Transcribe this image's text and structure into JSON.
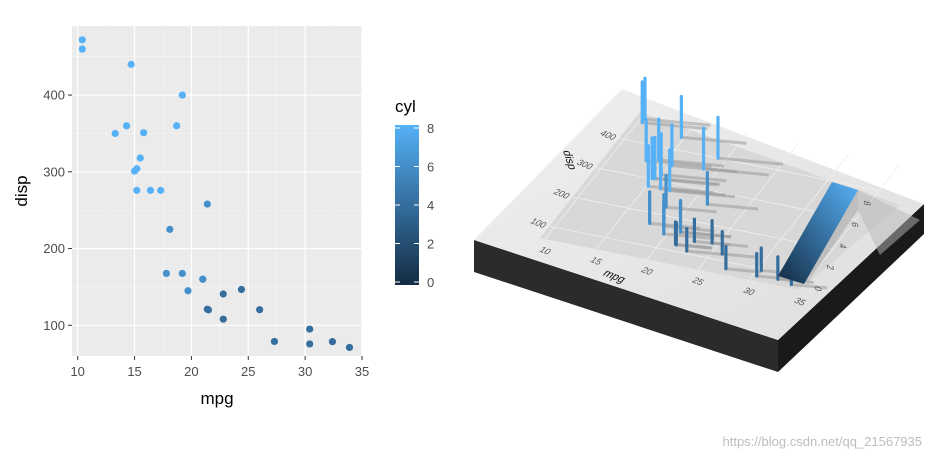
{
  "chart_data": [
    {
      "type": "scatter",
      "title": "",
      "xlabel": "mpg",
      "ylabel": "disp",
      "xlim": [
        9.5,
        35
      ],
      "ylim": [
        60,
        490
      ],
      "x_ticks": [
        10,
        15,
        20,
        25,
        30,
        35
      ],
      "y_ticks": [
        100,
        200,
        300,
        400
      ],
      "color_variable": "cyl",
      "points": [
        {
          "x": 10.4,
          "y": 472,
          "c": 8
        },
        {
          "x": 10.4,
          "y": 460,
          "c": 8
        },
        {
          "x": 14.7,
          "y": 440,
          "c": 8
        },
        {
          "x": 19.2,
          "y": 400,
          "c": 8
        },
        {
          "x": 18.7,
          "y": 360,
          "c": 8
        },
        {
          "x": 14.3,
          "y": 360,
          "c": 8
        },
        {
          "x": 13.3,
          "y": 350,
          "c": 8
        },
        {
          "x": 15.8,
          "y": 351,
          "c": 8
        },
        {
          "x": 15.5,
          "y": 318,
          "c": 8
        },
        {
          "x": 15.2,
          "y": 304,
          "c": 8
        },
        {
          "x": 15.0,
          "y": 301,
          "c": 8
        },
        {
          "x": 16.4,
          "y": 275.8,
          "c": 8
        },
        {
          "x": 17.3,
          "y": 275.8,
          "c": 8
        },
        {
          "x": 15.2,
          "y": 275.8,
          "c": 8
        },
        {
          "x": 21.4,
          "y": 258,
          "c": 6
        },
        {
          "x": 18.1,
          "y": 225,
          "c": 6
        },
        {
          "x": 17.8,
          "y": 167.6,
          "c": 6
        },
        {
          "x": 19.2,
          "y": 167.6,
          "c": 6
        },
        {
          "x": 21.0,
          "y": 160,
          "c": 6
        },
        {
          "x": 21.0,
          "y": 160,
          "c": 6
        },
        {
          "x": 19.7,
          "y": 145,
          "c": 6
        },
        {
          "x": 24.4,
          "y": 146.7,
          "c": 4
        },
        {
          "x": 22.8,
          "y": 140.8,
          "c": 4
        },
        {
          "x": 21.4,
          "y": 121,
          "c": 4
        },
        {
          "x": 21.5,
          "y": 120.1,
          "c": 4
        },
        {
          "x": 26.0,
          "y": 120.3,
          "c": 4
        },
        {
          "x": 22.8,
          "y": 108,
          "c": 4
        },
        {
          "x": 30.4,
          "y": 95.1,
          "c": 4
        },
        {
          "x": 27.3,
          "y": 79,
          "c": 4
        },
        {
          "x": 32.4,
          "y": 78.7,
          "c": 4
        },
        {
          "x": 30.4,
          "y": 75.7,
          "c": 4
        },
        {
          "x": 33.9,
          "y": 71.1,
          "c": 4
        }
      ]
    }
  ],
  "legend": {
    "title": "cyl",
    "ticks": [
      "0",
      "2",
      "4",
      "6",
      "8"
    ],
    "range": [
      0,
      8
    ],
    "color_low": "#132b43",
    "color_high": "#56b1f7"
  },
  "panel_3d": {
    "xlabel": "mpg",
    "ylabel": "disp",
    "x_ticks": [
      "10",
      "15",
      "20",
      "25",
      "30",
      "35"
    ],
    "y_ticks": [
      "100",
      "200",
      "300",
      "400"
    ],
    "legend_ticks": [
      "0",
      "2",
      "4",
      "6",
      "8"
    ]
  },
  "watermark": "https://blog.csdn.net/qq_21567935",
  "colors": {
    "panel_bg": "#ebebeb",
    "grid_major": "#ffffff",
    "grid_minor": "#f5f5f5",
    "board_top": "#e9e9e9",
    "board_side": "#2d2d2d",
    "board_side_dark": "#1c1c1c"
  }
}
